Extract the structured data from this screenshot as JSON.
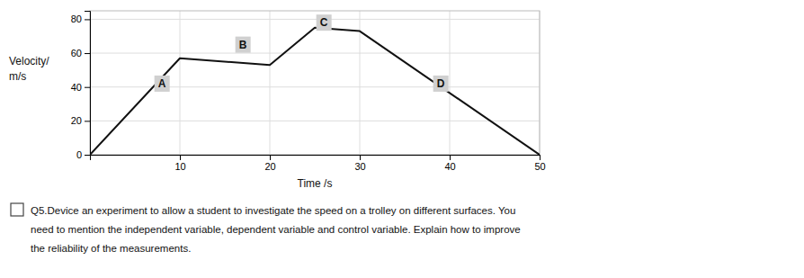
{
  "chart_data": {
    "type": "line",
    "x": [
      0,
      10,
      20,
      25,
      30,
      50
    ],
    "values": [
      0,
      57,
      53,
      75,
      73,
      0
    ],
    "color": "#111111",
    "xlim": [
      0,
      50
    ],
    "ylim": [
      0,
      85
    ],
    "xticks": [
      10,
      20,
      30,
      40,
      50
    ],
    "yticks": [
      0,
      20,
      40,
      60,
      80
    ],
    "grid": true,
    "xlabel": "Time /s",
    "ylabel": [
      "Velocity/",
      "m/s"
    ],
    "annotations": [
      {
        "text": "A",
        "x": 8.0,
        "y": 42
      },
      {
        "text": "B",
        "x": 17.0,
        "y": 65
      },
      {
        "text": "C",
        "x": 26.0,
        "y": 78
      },
      {
        "text": "D",
        "x": 39.0,
        "y": 42
      }
    ],
    "caption": [
      "Q5.Device an experiment to allow a student to investigate the speed on a trolley on different surfaces. You",
      "need to mention the independent variable, dependent variable and control variable. Explain how to improve",
      "the reliability of the measurements."
    ]
  }
}
